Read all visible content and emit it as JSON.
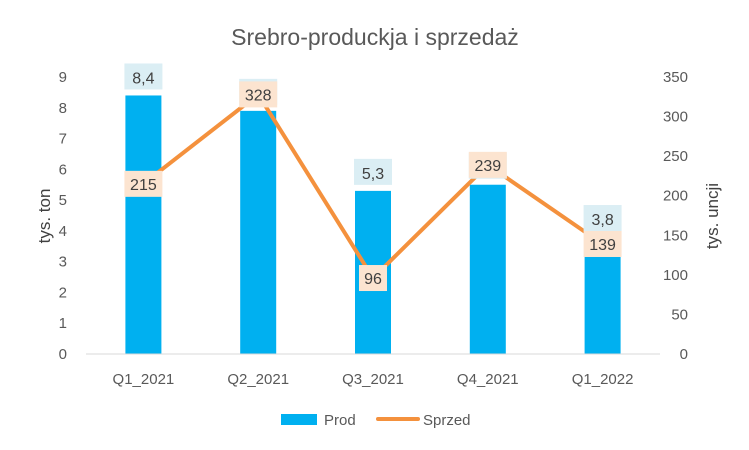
{
  "chart_data": {
    "type": "bar",
    "title": "Srebro-produckja i sprzedaż",
    "categories": [
      "Q1_2021",
      "Q2_2021",
      "Q3_2021",
      "Q4_2021",
      "Q1_2022"
    ],
    "series": [
      {
        "name": "Prod",
        "type": "bar",
        "axis": "left",
        "color": "#00b0f0",
        "values": [
          8.4,
          7.9,
          5.3,
          5.5,
          3.8
        ],
        "labels": [
          "8,4",
          "7,9",
          "5,3",
          "5,5",
          "3,8"
        ]
      },
      {
        "name": "Sprzed",
        "type": "line",
        "axis": "right",
        "color": "#f4913d",
        "values": [
          215,
          328,
          96,
          239,
          139
        ],
        "labels": [
          "215",
          "328",
          "96",
          "239",
          "139"
        ]
      }
    ],
    "ylabel": "tys. ton",
    "y2label": "tys. uncji",
    "ylim": [
      0,
      9
    ],
    "y2lim": [
      0,
      350
    ],
    "yticks": [
      "0",
      "1",
      "2",
      "3",
      "4",
      "5",
      "6",
      "7",
      "8",
      "9"
    ],
    "y2ticks": [
      "0",
      "50",
      "100",
      "150",
      "200",
      "250",
      "300",
      "350"
    ],
    "grid": false,
    "legend": "bottom"
  }
}
